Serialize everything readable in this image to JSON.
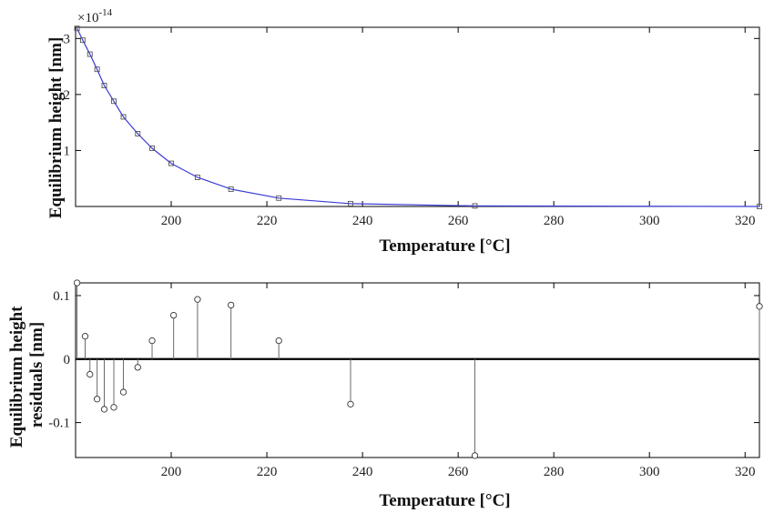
{
  "chart_data": [
    {
      "type": "line",
      "ylabel": "Equilibrium height [nm]",
      "xlabel": "Temperature [°C]",
      "y_exponent_base": "×10",
      "y_exponent_power": "-14",
      "xlim": [
        180,
        323
      ],
      "ylim": [
        0,
        3.2
      ],
      "xticks": [
        "200",
        "220",
        "240",
        "260",
        "280",
        "300",
        "320"
      ],
      "yticks": [
        "1",
        "2",
        "3"
      ],
      "colors": {
        "line": "#3b3bd6",
        "marker": "#555555",
        "axis": "#000000"
      },
      "marker": "square-icon",
      "series": [
        {
          "x": [
            180.3,
            181.5,
            183.0,
            184.5,
            186.0,
            188.0,
            190.0,
            193.0,
            196.0,
            200.0,
            205.5,
            212.5,
            222.5,
            237.5,
            263.5,
            323.0
          ],
          "y": [
            3.18,
            2.97,
            2.72,
            2.45,
            2.16,
            1.88,
            1.6,
            1.3,
            1.04,
            0.77,
            0.52,
            0.31,
            0.15,
            0.05,
            0.01,
            0.0
          ]
        }
      ]
    },
    {
      "type": "stem",
      "ylabel_line1": "Equilibrium height",
      "ylabel_line2": "residuals [nm]",
      "xlabel": "Temperature [°C]",
      "xlim": [
        180,
        323
      ],
      "ylim": [
        -0.155,
        0.12
      ],
      "xticks": [
        "200",
        "220",
        "240",
        "260",
        "280",
        "300",
        "320"
      ],
      "yticks": [
        "0.1",
        "0",
        "-0.1"
      ],
      "colors": {
        "stem": "#6a6a6a",
        "marker": "#333333",
        "baseline": "#000000"
      },
      "marker": "circle-icon",
      "series": [
        {
          "x": [
            180.3,
            182.0,
            183.0,
            184.5,
            186.0,
            188.0,
            190.0,
            193.0,
            196.0,
            200.5,
            205.5,
            212.5,
            222.5,
            237.5,
            263.5,
            323.0
          ],
          "y": [
            0.12,
            0.036,
            -0.024,
            -0.063,
            -0.079,
            -0.076,
            -0.052,
            -0.013,
            0.029,
            0.069,
            0.094,
            0.085,
            0.029,
            -0.071,
            -0.152,
            0.083
          ]
        }
      ]
    }
  ]
}
